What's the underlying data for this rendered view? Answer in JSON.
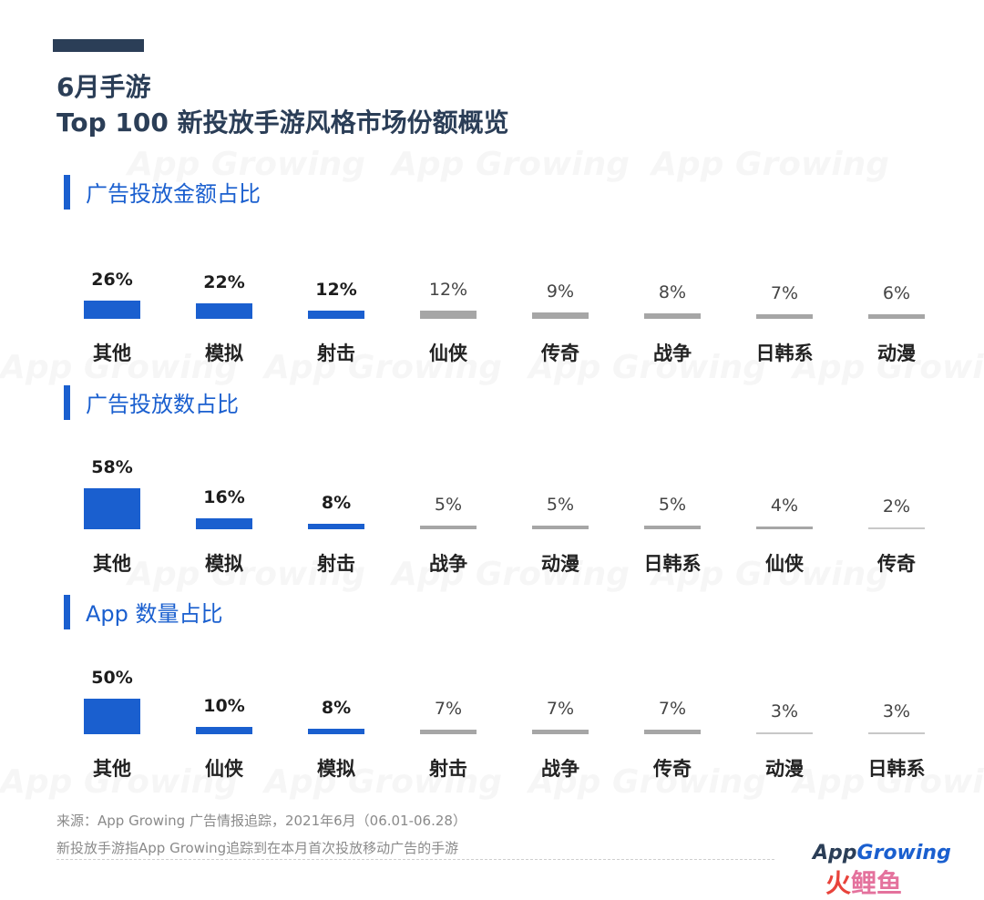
{
  "header": {
    "title_line1": "6月手游",
    "title_line2": "Top 100 新投放手游风格市场份额概览"
  },
  "watermark_text": "App Growing",
  "colors": {
    "highlight": "#1a5fcf",
    "normal": "#a6a6a6",
    "title": "#2b3e57"
  },
  "chart_data": [
    {
      "type": "bar",
      "title": "广告投放金额占比",
      "categories": [
        "其他",
        "模拟",
        "射击",
        "仙侠",
        "传奇",
        "战争",
        "日韩系",
        "动漫"
      ],
      "values": [
        26,
        22,
        12,
        12,
        9,
        8,
        7,
        6
      ],
      "value_labels": [
        "26%",
        "22%",
        "12%",
        "12%",
        "9%",
        "8%",
        "7%",
        "6%"
      ],
      "highlight": [
        true,
        true,
        true,
        false,
        false,
        false,
        false,
        false
      ]
    },
    {
      "type": "bar",
      "title": "广告投放数占比",
      "categories": [
        "其他",
        "模拟",
        "射击",
        "战争",
        "动漫",
        "日韩系",
        "仙侠",
        "传奇"
      ],
      "values": [
        58,
        16,
        8,
        5,
        5,
        5,
        4,
        2
      ],
      "value_labels": [
        "58%",
        "16%",
        "8%",
        "5%",
        "5%",
        "5%",
        "4%",
        "2%"
      ],
      "highlight": [
        true,
        true,
        true,
        false,
        false,
        false,
        false,
        false
      ]
    },
    {
      "type": "bar",
      "title": "App 数量占比",
      "categories": [
        "其他",
        "仙侠",
        "模拟",
        "射击",
        "战争",
        "传奇",
        "动漫",
        "日韩系"
      ],
      "values": [
        50,
        10,
        8,
        7,
        7,
        7,
        3,
        3
      ],
      "value_labels": [
        "50%",
        "10%",
        "8%",
        "7%",
        "7%",
        "7%",
        "3%",
        "3%"
      ],
      "highlight": [
        true,
        true,
        true,
        false,
        false,
        false,
        false,
        false
      ]
    }
  ],
  "footer": {
    "source": "来源：App Growing 广告情报追踪，2021年6月（06.01-06.28）",
    "definition": "新投放手游指App Growing追踪到在本月首次投放移动广告的手游",
    "logo_part1": "App",
    "logo_part2": "Growing",
    "corner_logo_1": "火",
    "corner_logo_2": "鲤鱼"
  }
}
